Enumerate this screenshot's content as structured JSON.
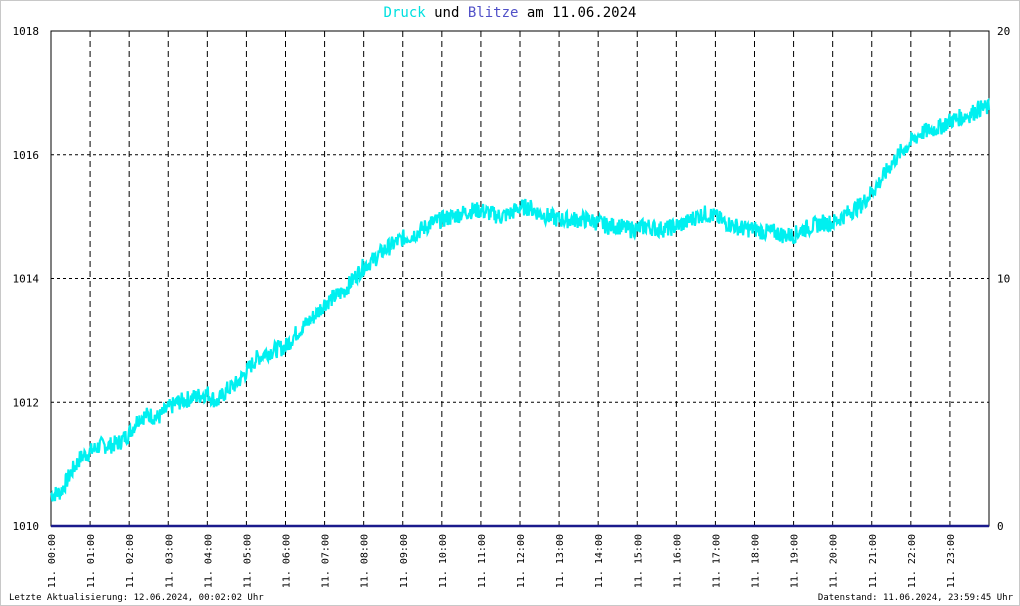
{
  "title": {
    "series1": "Druck",
    "connector": "und",
    "series2": "Blitze",
    "date_prefix": "am",
    "date": "11.06.2024"
  },
  "footer": {
    "left": "Letzte Aktualisierung: 12.06.2024, 00:02:02 Uhr",
    "right": "Datenstand: 11.06.2024, 23:59:45 Uhr"
  },
  "colors": {
    "druck": "#00f0f0",
    "blitze": "#1a1a8c",
    "grid": "#000000",
    "axis": "#000000"
  },
  "chart_data": {
    "type": "line",
    "title": "Druck und Blitze am 11.06.2024",
    "x_tick_labels": [
      "11. 00:00",
      "11. 01:00",
      "11. 02:00",
      "11. 03:00",
      "11. 04:00",
      "11. 05:00",
      "11. 06:00",
      "11. 07:00",
      "11. 08:00",
      "11. 09:00",
      "11. 10:00",
      "11. 11:00",
      "11. 12:00",
      "11. 13:00",
      "11. 14:00",
      "11. 15:00",
      "11. 16:00",
      "11. 17:00",
      "11. 18:00",
      "11. 19:00",
      "11. 20:00",
      "11. 21:00",
      "11. 22:00",
      "11. 23:00"
    ],
    "xlim": [
      0,
      24
    ],
    "y_left": {
      "ylim": [
        1010,
        1018
      ],
      "ticks": [
        "1010",
        "1012",
        "1014",
        "1016",
        "1018"
      ]
    },
    "y_right": {
      "ylim": [
        0,
        20
      ],
      "ticks": [
        "0",
        "10",
        "20"
      ]
    },
    "grid": true,
    "series": [
      {
        "name": "Druck",
        "axis": "left",
        "x": [
          0,
          0.25,
          0.5,
          0.75,
          1.0,
          1.25,
          1.5,
          1.75,
          2.0,
          2.25,
          2.5,
          2.75,
          3.0,
          3.25,
          3.5,
          3.75,
          4.0,
          4.25,
          4.5,
          4.75,
          5.0,
          5.25,
          5.5,
          5.75,
          6.0,
          6.25,
          6.5,
          6.75,
          7.0,
          7.25,
          7.5,
          7.75,
          8.0,
          8.25,
          8.5,
          8.75,
          9.0,
          9.25,
          9.5,
          9.75,
          10.0,
          10.25,
          10.5,
          10.75,
          11.0,
          11.25,
          11.5,
          11.75,
          12.0,
          12.25,
          12.5,
          12.75,
          13.0,
          13.25,
          13.5,
          13.75,
          14.0,
          14.25,
          14.5,
          14.75,
          15.0,
          15.25,
          15.5,
          15.75,
          16.0,
          16.25,
          16.5,
          16.75,
          17.0,
          17.25,
          17.5,
          17.75,
          18.0,
          18.25,
          18.5,
          18.75,
          19.0,
          19.25,
          19.5,
          19.75,
          20.0,
          20.25,
          20.5,
          20.75,
          21.0,
          21.25,
          21.5,
          21.75,
          22.0,
          22.25,
          22.5,
          22.75,
          23.0,
          23.25,
          23.5,
          23.75,
          24.0
        ],
        "values": [
          1010.5,
          1010.55,
          1010.85,
          1011.1,
          1011.2,
          1011.3,
          1011.3,
          1011.35,
          1011.5,
          1011.75,
          1011.8,
          1011.75,
          1011.9,
          1012.0,
          1012.05,
          1012.1,
          1012.15,
          1012.0,
          1012.2,
          1012.3,
          1012.5,
          1012.7,
          1012.8,
          1012.85,
          1012.9,
          1013.1,
          1013.25,
          1013.4,
          1013.6,
          1013.7,
          1013.8,
          1014.0,
          1014.2,
          1014.3,
          1014.45,
          1014.55,
          1014.65,
          1014.7,
          1014.8,
          1014.9,
          1014.95,
          1015.0,
          1015.05,
          1015.1,
          1015.1,
          1015.05,
          1015.0,
          1015.05,
          1015.15,
          1015.15,
          1015.05,
          1015.0,
          1014.95,
          1014.95,
          1014.95,
          1014.95,
          1014.9,
          1014.85,
          1014.85,
          1014.8,
          1014.8,
          1014.85,
          1014.8,
          1014.8,
          1014.85,
          1014.9,
          1015.0,
          1015.05,
          1015.0,
          1014.9,
          1014.85,
          1014.8,
          1014.8,
          1014.75,
          1014.75,
          1014.7,
          1014.7,
          1014.8,
          1014.85,
          1014.9,
          1014.9,
          1015.0,
          1015.1,
          1015.2,
          1015.4,
          1015.6,
          1015.85,
          1016.05,
          1016.2,
          1016.35,
          1016.4,
          1016.45,
          1016.55,
          1016.6,
          1016.65,
          1016.75,
          1016.75
        ]
      },
      {
        "name": "Blitze",
        "axis": "right",
        "x": [
          0,
          24
        ],
        "values": [
          0,
          0
        ]
      }
    ]
  }
}
